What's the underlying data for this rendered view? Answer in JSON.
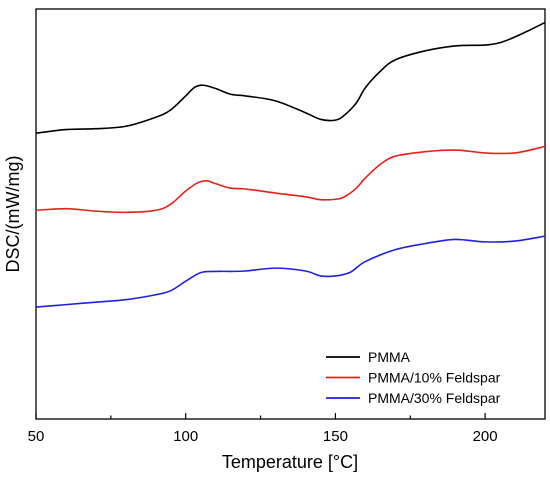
{
  "chart_data": {
    "type": "line",
    "title": "",
    "xlabel": "Temperature [°C]",
    "ylabel": "DSC/(mW/mg)",
    "xlim": [
      50,
      220
    ],
    "ylim": [
      0,
      100
    ],
    "x_ticks": [
      50,
      100,
      150,
      200
    ],
    "x_tick_labels": [
      "50",
      "100",
      "150",
      "200"
    ],
    "y_ticks_shown": false,
    "grid": false,
    "legend_position": "bottom-right",
    "series": [
      {
        "name": "PMMA",
        "color": "#000000",
        "x": [
          50,
          60,
          70,
          80,
          90,
          95,
          100,
          103,
          106,
          110,
          115,
          120,
          130,
          140,
          145,
          150,
          153,
          157,
          160,
          165,
          170,
          180,
          190,
          200,
          205,
          210,
          215,
          220
        ],
        "y": [
          69.7,
          70.6,
          70.8,
          71.4,
          73.6,
          75.4,
          78.8,
          80.9,
          81.4,
          80.6,
          79.2,
          78.8,
          77.6,
          74.7,
          73.1,
          72.9,
          74.1,
          77.1,
          80.8,
          84.8,
          87.6,
          89.8,
          91.0,
          91.2,
          91.8,
          93.2,
          94.9,
          96.7
        ]
      },
      {
        "name": "PMMA/10% Feldspar",
        "color": "#e8211b",
        "x": [
          50,
          60,
          70,
          80,
          90,
          95,
          100,
          104,
          107,
          110,
          115,
          120,
          130,
          140,
          145,
          150,
          153,
          157,
          160,
          165,
          170,
          180,
          190,
          200,
          210,
          220
        ],
        "y": [
          50.9,
          51.3,
          50.7,
          50.4,
          50.9,
          52.4,
          55.6,
          57.6,
          58.1,
          57.4,
          56.3,
          56.1,
          55.1,
          54.2,
          53.5,
          53.6,
          54.2,
          56.3,
          58.8,
          62.1,
          64.1,
          65.2,
          65.6,
          64.9,
          64.9,
          66.5
        ]
      },
      {
        "name": "PMMA/30% Feldspar",
        "color": "#2121dd",
        "x": [
          50,
          60,
          70,
          80,
          90,
          95,
          100,
          105,
          110,
          115,
          120,
          130,
          140,
          145,
          150,
          155,
          160,
          170,
          180,
          190,
          200,
          210,
          220
        ],
        "y": [
          27.3,
          27.9,
          28.5,
          29.1,
          30.3,
          31.3,
          33.6,
          35.7,
          36.0,
          36.0,
          36.1,
          36.8,
          36.1,
          34.9,
          34.9,
          35.8,
          38.4,
          41.3,
          42.8,
          43.8,
          43.2,
          43.4,
          44.6
        ]
      }
    ]
  }
}
